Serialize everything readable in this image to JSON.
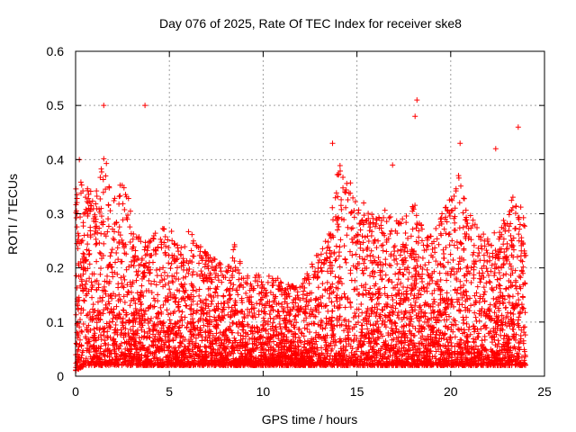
{
  "chart_data": {
    "type": "scatter",
    "title": "Day 076 of 2025, Rate Of TEC Index for receiver ske8",
    "xlabel": "GPS time / hours",
    "ylabel": "ROTI / TECUs",
    "xlim": [
      0,
      25
    ],
    "ylim": [
      0,
      0.6
    ],
    "xticks": [
      0,
      5,
      10,
      15,
      20,
      25
    ],
    "yticks": [
      0,
      0.1,
      0.2,
      0.3,
      0.4,
      0.5,
      0.6
    ],
    "xtick_labels": [
      "0",
      "5",
      "10",
      "15",
      "20",
      "25"
    ],
    "ytick_labels": [
      "0",
      "0.1",
      "0.2",
      "0.3",
      "0.4",
      "0.5",
      "0.6"
    ],
    "grid": true,
    "marker": "+",
    "color": "#ff0000",
    "series": [
      {
        "name": "ROTI",
        "notable_points": [
          {
            "x": 1.5,
            "y": 0.5
          },
          {
            "x": 3.7,
            "y": 0.5
          },
          {
            "x": 18.2,
            "y": 0.51
          },
          {
            "x": 18.1,
            "y": 0.48
          },
          {
            "x": 13.7,
            "y": 0.43
          },
          {
            "x": 20.5,
            "y": 0.43
          },
          {
            "x": 22.4,
            "y": 0.42
          },
          {
            "x": 23.6,
            "y": 0.46
          },
          {
            "x": 16.9,
            "y": 0.39
          },
          {
            "x": 0.2,
            "y": 0.4
          }
        ],
        "envelope": {
          "x": [
            0,
            0.5,
            1,
            1.5,
            2,
            2.5,
            3,
            3.5,
            4,
            4.5,
            5,
            5.5,
            6,
            6.5,
            7,
            7.5,
            8,
            8.5,
            9,
            9.5,
            10,
            10.5,
            11,
            11.5,
            12,
            12.5,
            13,
            13.5,
            14,
            14.5,
            15,
            15.5,
            16,
            16.5,
            17,
            17.5,
            18,
            18.5,
            19,
            19.5,
            20,
            20.5,
            21,
            21.5,
            22,
            22.5,
            23,
            23.5,
            24
          ],
          "y_max": [
            0.35,
            0.38,
            0.32,
            0.42,
            0.33,
            0.38,
            0.3,
            0.25,
            0.26,
            0.27,
            0.28,
            0.25,
            0.27,
            0.25,
            0.24,
            0.22,
            0.2,
            0.25,
            0.18,
            0.2,
            0.18,
            0.19,
            0.18,
            0.17,
            0.17,
            0.2,
            0.24,
            0.26,
            0.4,
            0.38,
            0.33,
            0.32,
            0.34,
            0.31,
            0.29,
            0.3,
            0.34,
            0.28,
            0.26,
            0.3,
            0.33,
            0.38,
            0.3,
            0.27,
            0.26,
            0.27,
            0.31,
            0.36,
            0.28
          ],
          "y_min": [
            0.01,
            0.02,
            0.02,
            0.02,
            0.02,
            0.02,
            0.02,
            0.02,
            0.02,
            0.02,
            0.02,
            0.02,
            0.02,
            0.02,
            0.02,
            0.02,
            0.02,
            0.02,
            0.02,
            0.02,
            0.02,
            0.02,
            0.02,
            0.02,
            0.02,
            0.02,
            0.02,
            0.02,
            0.02,
            0.02,
            0.02,
            0.02,
            0.02,
            0.02,
            0.02,
            0.02,
            0.02,
            0.02,
            0.02,
            0.02,
            0.02,
            0.02,
            0.02,
            0.02,
            0.02,
            0.02,
            0.02,
            0.02,
            0.02
          ]
        },
        "point_count_estimate": 5500
      }
    ]
  }
}
